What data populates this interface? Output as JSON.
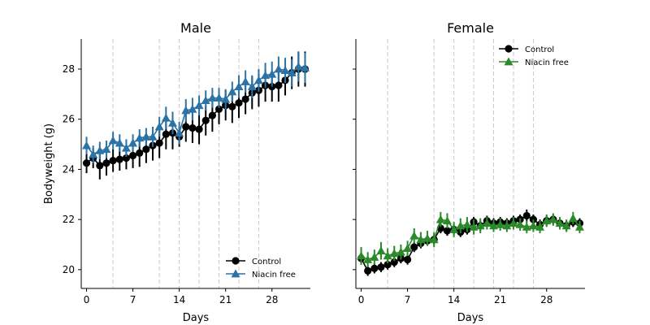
{
  "chart_data": [
    {
      "type": "line",
      "title": "Male",
      "xlabel": "Days",
      "ylabel": "Bodyweight (g)",
      "xlim": [
        -0.8,
        33.8
      ],
      "ylim": [
        19.25,
        29.2
      ],
      "xticks": [
        0,
        7,
        14,
        21,
        28
      ],
      "yticks": [
        20,
        22,
        24,
        26,
        28
      ],
      "vlines": [
        4,
        11,
        14,
        17,
        20,
        23,
        26
      ],
      "legend_position": "lower-right",
      "colors": {
        "Control": "#000000",
        "Niacin free": "#2b73a6",
        "vline": "#c8c8c8"
      },
      "series": [
        {
          "name": "Control",
          "marker": "circle",
          "x": [
            0,
            1,
            2,
            3,
            4,
            5,
            6,
            7,
            8,
            9,
            10,
            11,
            12,
            13,
            14,
            15,
            16,
            17,
            18,
            19,
            20,
            21,
            22,
            23,
            24,
            25,
            26,
            27,
            28,
            29,
            30,
            31,
            32,
            33
          ],
          "y": [
            24.25,
            24.45,
            24.15,
            24.25,
            24.35,
            24.4,
            24.45,
            24.55,
            24.65,
            24.8,
            24.95,
            25.05,
            25.4,
            25.45,
            25.3,
            25.7,
            25.65,
            25.6,
            25.95,
            26.15,
            26.4,
            26.55,
            26.5,
            26.65,
            26.8,
            27.05,
            27.15,
            27.35,
            27.3,
            27.35,
            27.55,
            27.85,
            28.0,
            28.0
          ],
          "err": [
            0.4,
            0.4,
            0.55,
            0.5,
            0.45,
            0.45,
            0.45,
            0.5,
            0.55,
            0.55,
            0.6,
            0.6,
            0.6,
            0.65,
            0.4,
            0.6,
            0.6,
            0.6,
            0.6,
            0.65,
            0.6,
            0.6,
            0.65,
            0.6,
            0.6,
            0.65,
            0.65,
            0.65,
            0.6,
            0.65,
            0.6,
            0.65,
            0.7,
            0.7
          ]
        },
        {
          "name": "Niacin free",
          "marker": "triangle",
          "x": [
            0,
            1,
            2,
            3,
            4,
            5,
            6,
            7,
            8,
            9,
            10,
            11,
            12,
            13,
            14,
            15,
            16,
            17,
            18,
            19,
            20,
            21,
            22,
            23,
            24,
            25,
            26,
            27,
            28,
            29,
            30,
            31,
            32,
            33
          ],
          "y": [
            24.95,
            24.6,
            24.75,
            24.8,
            25.15,
            25.05,
            24.85,
            25.05,
            25.25,
            25.3,
            25.3,
            25.7,
            26.05,
            25.85,
            25.45,
            26.35,
            26.4,
            26.55,
            26.75,
            26.85,
            26.85,
            26.8,
            27.1,
            27.3,
            27.5,
            27.3,
            27.55,
            27.75,
            27.8,
            28.0,
            27.95,
            27.85,
            28.1,
            28.05
          ],
          "err": [
            0.35,
            0.35,
            0.35,
            0.35,
            0.35,
            0.35,
            0.35,
            0.35,
            0.35,
            0.35,
            0.4,
            0.4,
            0.45,
            0.45,
            0.45,
            0.45,
            0.45,
            0.4,
            0.4,
            0.4,
            0.4,
            0.4,
            0.4,
            0.45,
            0.45,
            0.45,
            0.45,
            0.5,
            0.5,
            0.5,
            0.5,
            0.55,
            0.6,
            0.6
          ]
        }
      ]
    },
    {
      "type": "line",
      "title": "Female",
      "xlabel": "Days",
      "ylabel": "",
      "xlim": [
        -0.8,
        33.8
      ],
      "ylim": [
        19.25,
        29.2
      ],
      "xticks": [
        0,
        7,
        14,
        21,
        28
      ],
      "yticks": [
        20,
        22,
        24,
        26,
        28
      ],
      "vlines": [
        4,
        11,
        14,
        17,
        20,
        23,
        26
      ],
      "legend_position": "top-right",
      "colors": {
        "Control": "#000000",
        "Niacin free": "#2a8a2a",
        "vline": "#c8c8c8"
      },
      "series": [
        {
          "name": "Control",
          "marker": "circle",
          "x": [
            0,
            1,
            2,
            3,
            4,
            5,
            6,
            7,
            8,
            9,
            10,
            11,
            12,
            13,
            14,
            15,
            16,
            17,
            18,
            19,
            20,
            21,
            22,
            23,
            24,
            25,
            26,
            27,
            28,
            29,
            30,
            31,
            32,
            33
          ],
          "y": [
            20.45,
            19.95,
            20.05,
            20.1,
            20.2,
            20.3,
            20.45,
            20.4,
            20.9,
            21.05,
            21.15,
            21.2,
            21.65,
            21.55,
            21.6,
            21.5,
            21.6,
            21.9,
            21.75,
            21.95,
            21.85,
            21.9,
            21.85,
            21.95,
            22.0,
            22.15,
            22.0,
            21.8,
            21.95,
            22.0,
            21.85,
            21.75,
            21.9,
            21.85
          ],
          "err": [
            0.25,
            0.2,
            0.2,
            0.2,
            0.2,
            0.2,
            0.2,
            0.2,
            0.2,
            0.2,
            0.2,
            0.2,
            0.2,
            0.2,
            0.2,
            0.2,
            0.2,
            0.2,
            0.2,
            0.2,
            0.2,
            0.2,
            0.2,
            0.2,
            0.2,
            0.25,
            0.2,
            0.2,
            0.2,
            0.2,
            0.2,
            0.2,
            0.2,
            0.2
          ]
        },
        {
          "name": "Niacin free",
          "marker": "triangle",
          "x": [
            0,
            1,
            2,
            3,
            4,
            5,
            6,
            7,
            8,
            9,
            10,
            11,
            12,
            13,
            14,
            15,
            16,
            17,
            18,
            19,
            20,
            21,
            22,
            23,
            24,
            25,
            26,
            27,
            28,
            29,
            30,
            31,
            32,
            33
          ],
          "y": [
            20.55,
            20.4,
            20.5,
            20.75,
            20.55,
            20.65,
            20.7,
            20.85,
            21.35,
            21.2,
            21.25,
            21.2,
            22.0,
            21.95,
            21.6,
            21.75,
            21.8,
            21.7,
            21.75,
            21.85,
            21.75,
            21.8,
            21.75,
            21.85,
            21.8,
            21.7,
            21.75,
            21.7,
            21.95,
            22.0,
            21.85,
            21.75,
            22.05,
            21.7
          ],
          "err": [
            0.35,
            0.3,
            0.3,
            0.35,
            0.3,
            0.3,
            0.3,
            0.3,
            0.3,
            0.3,
            0.3,
            0.3,
            0.3,
            0.3,
            0.3,
            0.3,
            0.3,
            0.3,
            0.3,
            0.25,
            0.25,
            0.25,
            0.25,
            0.25,
            0.25,
            0.25,
            0.25,
            0.25,
            0.25,
            0.25,
            0.25,
            0.25,
            0.25,
            0.25
          ]
        }
      ]
    }
  ]
}
